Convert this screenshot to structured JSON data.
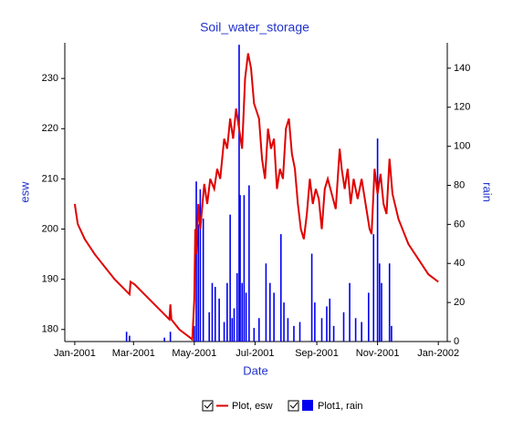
{
  "chart_data": {
    "type": "line-bar",
    "title": "Soil_water_storage",
    "x_label": "Date",
    "y_label": "esw",
    "y2_label": "rain",
    "xlim": [
      -10,
      374
    ],
    "xticks": [
      {
        "value": 0,
        "label": "Jan-2001"
      },
      {
        "value": 59,
        "label": "Mar-2001"
      },
      {
        "value": 120,
        "label": "May-2001"
      },
      {
        "value": 181,
        "label": "Jul-2001"
      },
      {
        "value": 243,
        "label": "Sep-2001"
      },
      {
        "value": 304,
        "label": "Nov-2001"
      },
      {
        "value": 365,
        "label": "Jan-2002"
      }
    ],
    "ylim": [
      177.6,
      237.1
    ],
    "yticks": [
      180,
      190,
      200,
      210,
      220,
      230
    ],
    "y2lim": [
      0,
      153
    ],
    "y2ticks": [
      0,
      20,
      40,
      60,
      80,
      100,
      120,
      140
    ],
    "series": [
      {
        "name": "Plot, esw",
        "color": "#e00000",
        "kind": "line",
        "x": [
          0,
          3,
          10,
          20,
          30,
          40,
          50,
          55,
          56,
          60,
          70,
          80,
          90,
          95,
          96,
          97,
          105,
          115,
          118,
          120,
          121,
          122,
          124,
          126,
          130,
          133,
          136,
          140,
          143,
          146,
          150,
          153,
          156,
          159,
          162,
          165,
          168,
          171,
          174,
          177,
          180,
          185,
          188,
          191,
          194,
          197,
          200,
          203,
          206,
          209,
          212,
          215,
          218,
          221,
          224,
          227,
          230,
          233,
          236,
          239,
          242,
          245,
          248,
          251,
          254,
          258,
          262,
          266,
          268,
          271,
          274,
          277,
          280,
          284,
          288,
          292,
          296,
          298,
          301,
          304,
          307,
          310,
          313,
          316,
          319,
          325,
          335,
          345,
          355,
          365
        ],
        "values": [
          205,
          201,
          198,
          195,
          192.5,
          190,
          188,
          187,
          189.5,
          189,
          187,
          185,
          183,
          182,
          185,
          182,
          180,
          178.5,
          178,
          186,
          200,
          195,
          205,
          200,
          209,
          205,
          210,
          208,
          212,
          210,
          218,
          216,
          222,
          218,
          224,
          220,
          216,
          230,
          235,
          232,
          225,
          222,
          214,
          210,
          220,
          216,
          218,
          208,
          212,
          210,
          220,
          222,
          215,
          212,
          205,
          200,
          198,
          203,
          210,
          205,
          208,
          206,
          200,
          208,
          210,
          207,
          204,
          216,
          212,
          208,
          212,
          205,
          210,
          206,
          210,
          205,
          200,
          199,
          212,
          207,
          211,
          205,
          203,
          214,
          207,
          202,
          197,
          194,
          191,
          189.5
        ]
      },
      {
        "name": "Plot1, rain",
        "color": "#0000ee",
        "kind": "bar",
        "axis": "y2",
        "x": [
          52,
          55,
          90,
          96,
          120,
          122,
          124,
          126,
          129,
          135,
          138,
          141,
          145,
          150,
          153,
          156,
          158,
          160,
          163,
          165,
          166,
          168,
          170,
          172,
          175,
          180,
          185,
          192,
          196,
          200,
          207,
          210,
          214,
          220,
          226,
          238,
          241,
          248,
          253,
          256,
          260,
          270,
          276,
          282,
          288,
          295,
          300,
          304,
          306,
          308,
          316,
          318
        ],
        "values": [
          5,
          3,
          2,
          5,
          8,
          82,
          60,
          78,
          63,
          15,
          30,
          28,
          22,
          10,
          30,
          65,
          12,
          17,
          35,
          152,
          75,
          30,
          75,
          25,
          80,
          7,
          12,
          40,
          30,
          25,
          55,
          20,
          12,
          8,
          10,
          45,
          20,
          12,
          18,
          22,
          8,
          15,
          30,
          12,
          10,
          25,
          55,
          104,
          40,
          30,
          40,
          8
        ]
      }
    ]
  }
}
